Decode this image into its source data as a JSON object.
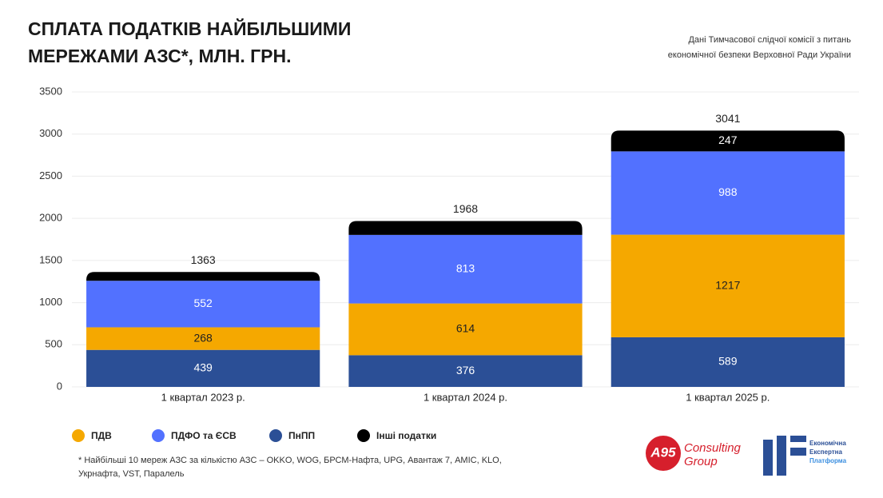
{
  "chart_data": {
    "type": "stacked-bar",
    "title": [
      "СПЛАТА ПОДАТКІВ НАЙБІЛЬШИМИ",
      "МЕРЕЖАМИ АЗС*, МЛН. ГРН."
    ],
    "source": [
      "Дані Тимчасової слідчої комісії з питань",
      "економічної безпеки Верховної Ради України"
    ],
    "categories": [
      "1 квартал 2023 р.",
      "1 квартал 2024 р.",
      "1 квартал 2025 р."
    ],
    "series": [
      {
        "name": "ПДВ",
        "color": "#f5a800",
        "values": [
          268,
          614,
          1217
        ]
      },
      {
        "name": "ПДФО та ЄСВ",
        "color": "#5271ff",
        "values": [
          552,
          813,
          988
        ]
      },
      {
        "name": "ПнПП",
        "color": "#2b4f96",
        "values": [
          439,
          376,
          589
        ]
      },
      {
        "name": "Інші податки",
        "color": "#000000",
        "values": [
          104,
          165,
          247
        ],
        "value_labels": [
          null,
          null,
          "247"
        ]
      }
    ],
    "totals": [
      1363,
      1968,
      3041
    ],
    "ylim": [
      0,
      3500
    ],
    "yticks": [
      0,
      500,
      1000,
      1500,
      2000,
      2500,
      3000,
      3500
    ],
    "grid": true,
    "footnote": [
      "* Найбільші 10 мереж АЗС за кількістю АЗС – OKKO, WOG, БРСМ-Нафта, UPG, Авантаж 7, AMIC, KLO,",
      "Укрнафта, VST, Паралель"
    ],
    "logos": {
      "a95": {
        "mark": "A95",
        "name": [
          "Consulting",
          "Group"
        ]
      },
      "eep": [
        "Економічна",
        "Експертна",
        "Платформа"
      ]
    }
  }
}
